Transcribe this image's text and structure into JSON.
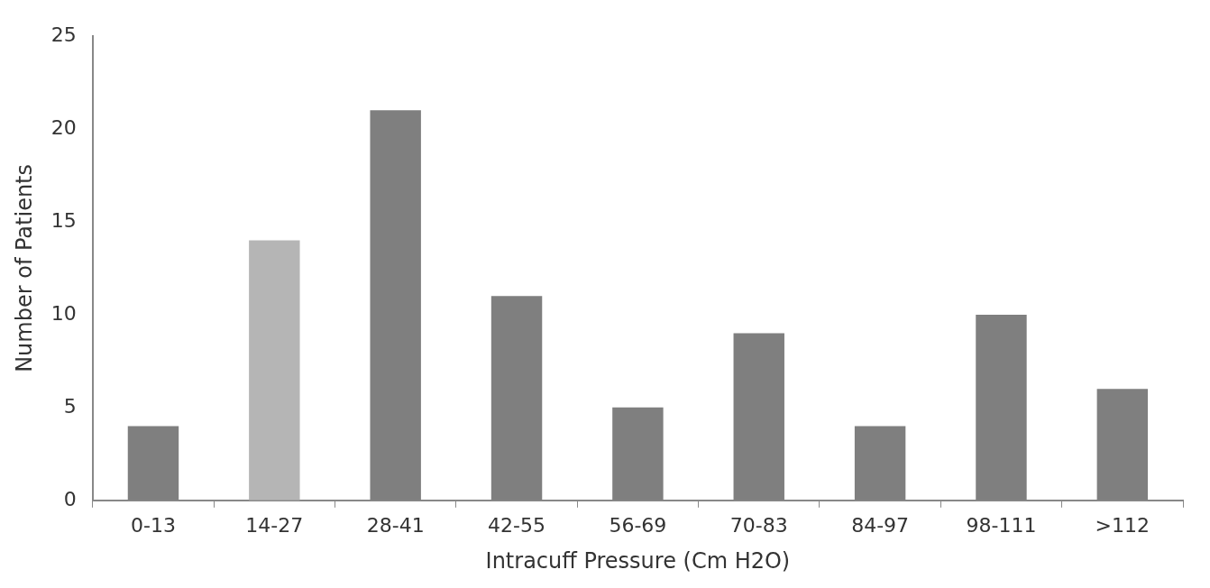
{
  "chart_data": {
    "type": "bar",
    "xlabel": "Intracuff Pressure (Cm H2O)",
    "ylabel": "Number of Patients",
    "categories": [
      "0-13",
      "14-27",
      "28-41",
      "42-55",
      "56-69",
      "70-83",
      "84-97",
      "98-111",
      ">112"
    ],
    "values": [
      4,
      14,
      21,
      11,
      5,
      9,
      4,
      10,
      6
    ],
    "colors": [
      "#7f7f7f",
      "#b5b5b5",
      "#7f7f7f",
      "#7f7f7f",
      "#7f7f7f",
      "#7f7f7f",
      "#7f7f7f",
      "#7f7f7f",
      "#7f7f7f"
    ],
    "ylim": [
      0,
      25
    ],
    "yticks": [
      0,
      5,
      10,
      15,
      20,
      25
    ],
    "grid": false,
    "legend": false
  }
}
